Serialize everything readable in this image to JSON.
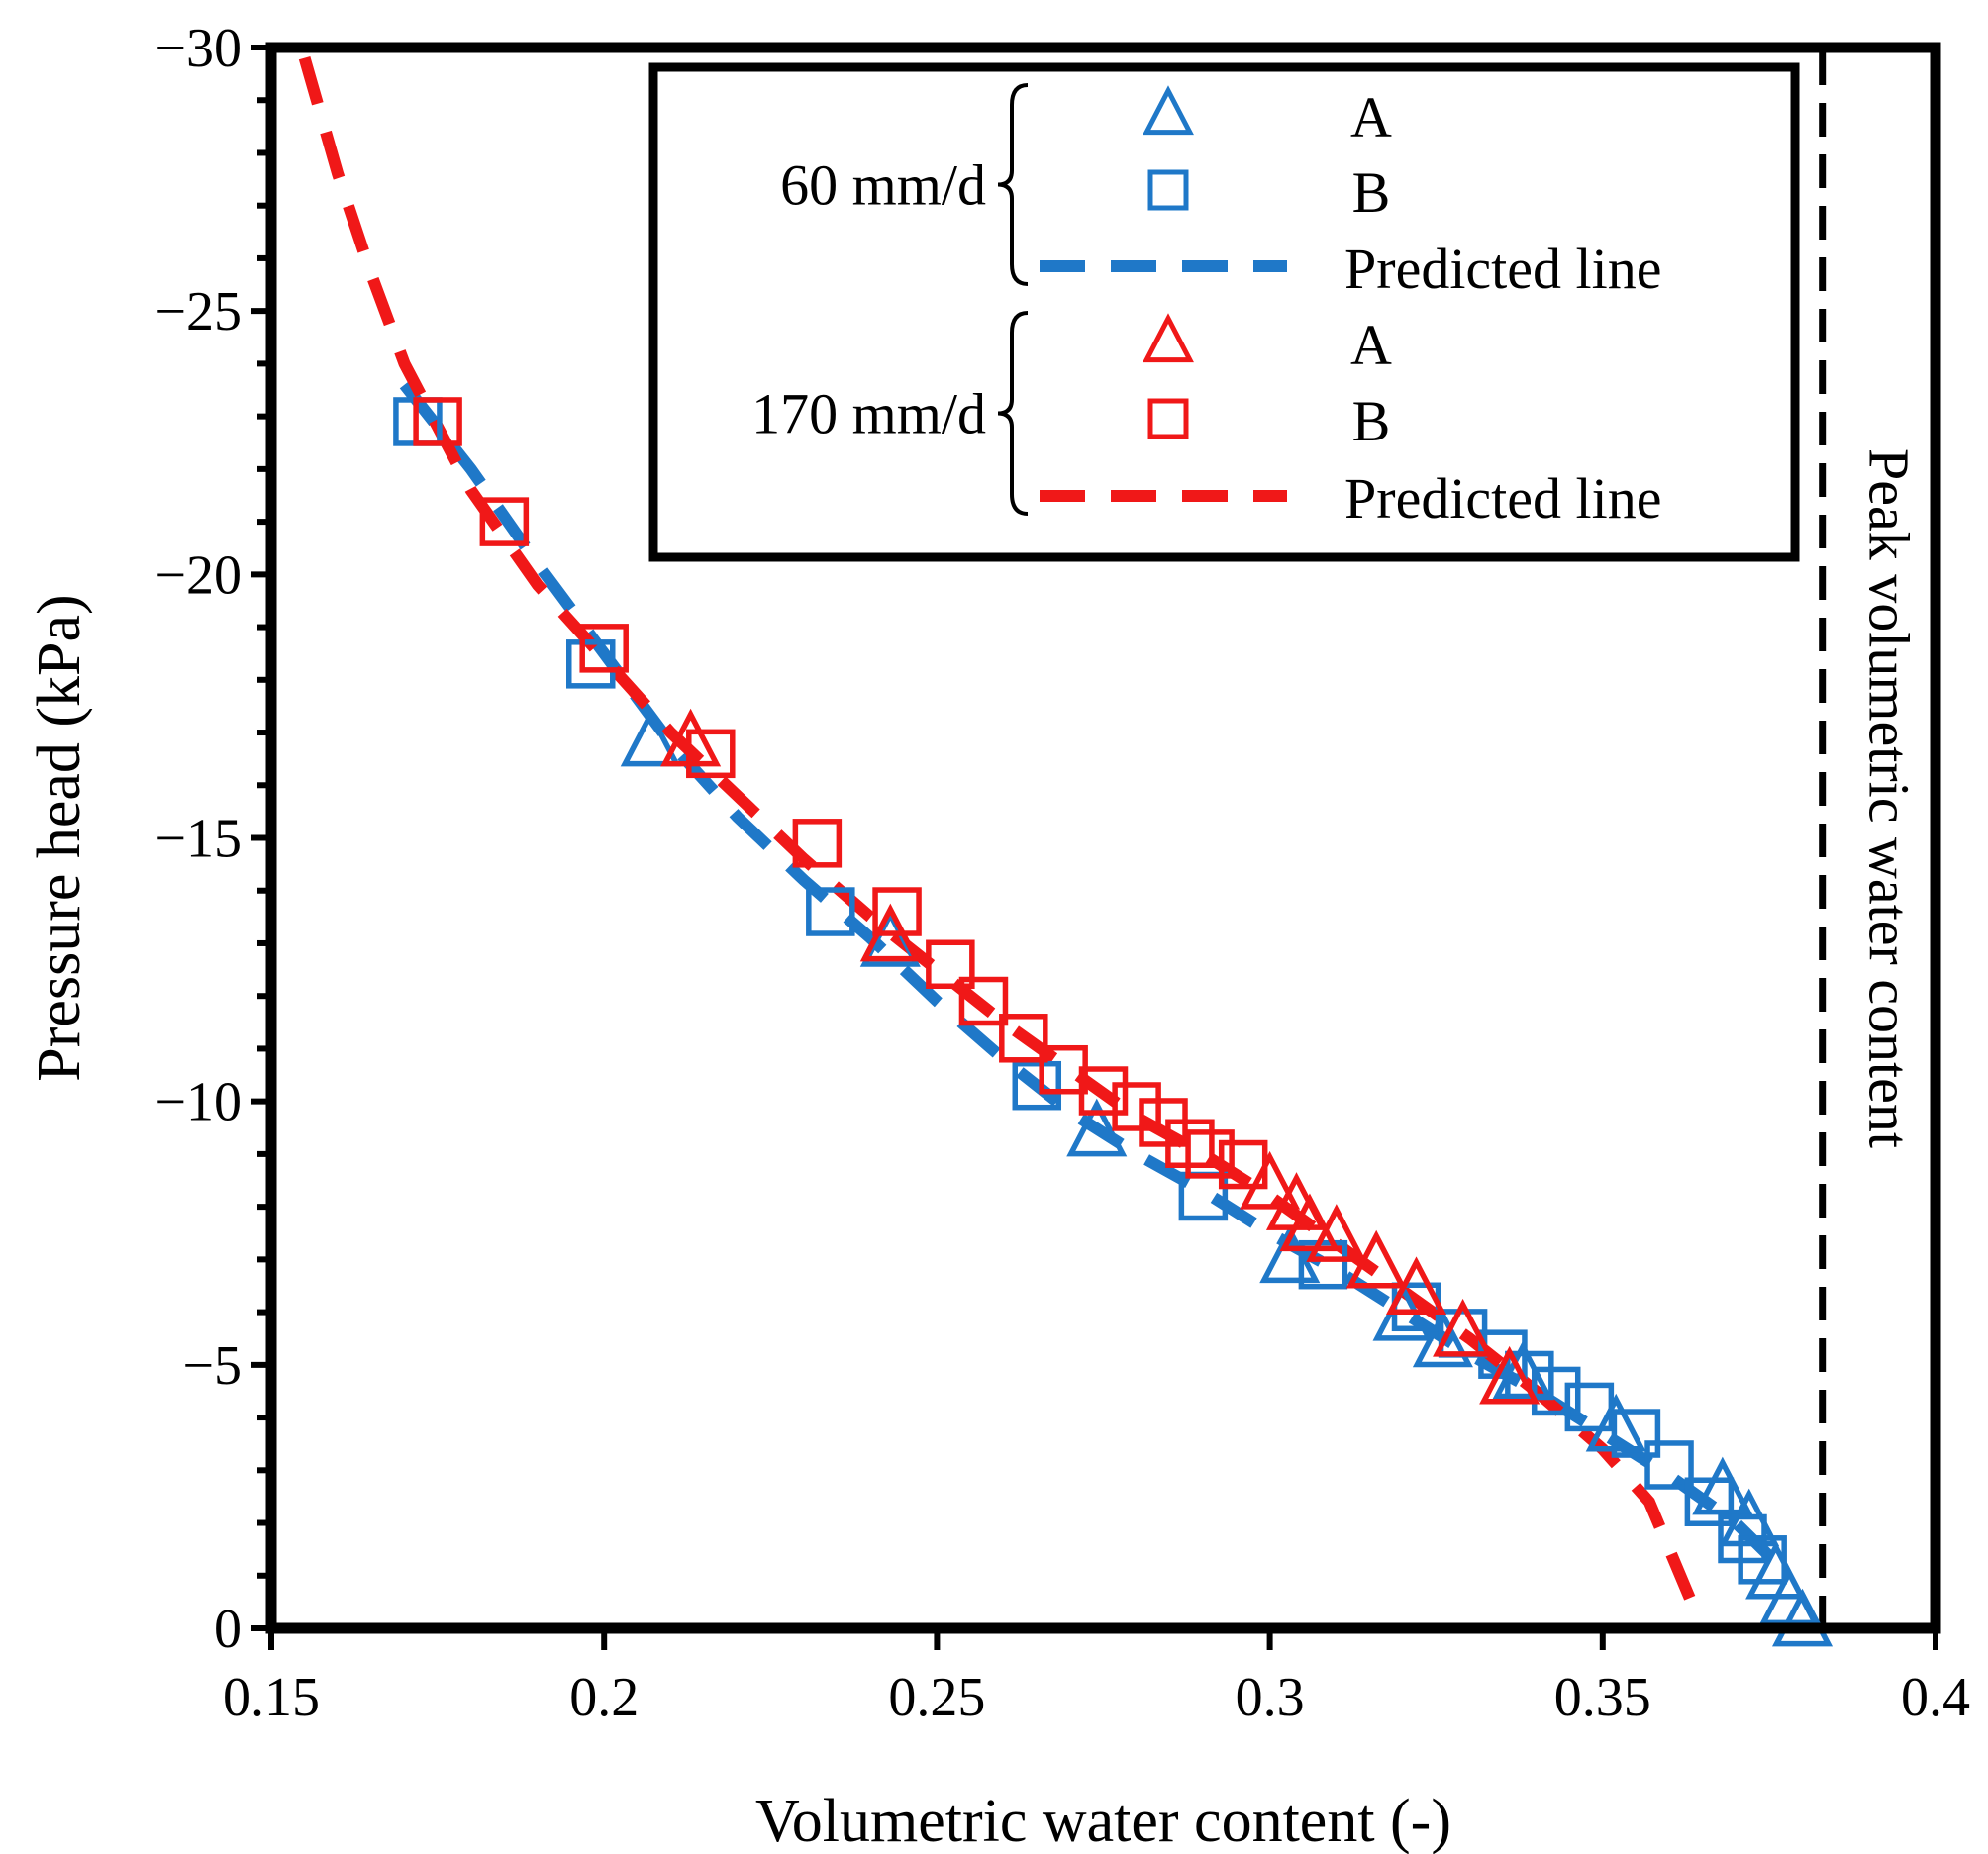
{
  "chart_data": {
    "type": "scatter",
    "title": "",
    "xlabel": "Volumetric water content (-)",
    "ylabel": "Pressure head (kPa)",
    "xlim": [
      0.15,
      0.4
    ],
    "ylim": [
      0,
      -30
    ],
    "xticks": [
      0.15,
      0.2,
      0.25,
      0.3,
      0.35,
      0.4
    ],
    "xtick_labels": [
      "0.15",
      "0.2",
      "0.25",
      "0.3",
      "0.35",
      "0.4"
    ],
    "yticks": [
      0,
      -5,
      -10,
      -15,
      -20,
      -25,
      -30
    ],
    "ytick_labels": [
      "0",
      "−5",
      "−10",
      "−15",
      "−20",
      "−25",
      "−30"
    ],
    "grid": false,
    "legend_position": "top-right",
    "colors": {
      "blue": "#1f78c8",
      "red": "#f01818",
      "black": "#000000"
    },
    "groups": [
      {
        "label": "60 mm/d",
        "entries": [
          "A",
          "B",
          "Predicted line"
        ]
      },
      {
        "label": "170 mm/d",
        "entries": [
          "A",
          "B",
          "Predicted line"
        ]
      }
    ],
    "series": [
      {
        "name": "A",
        "group": "60 mm/d",
        "marker": "triangle",
        "color": "#1f78c8",
        "points": [
          [
            0.207,
            -16.8
          ],
          [
            0.243,
            -13.0
          ],
          [
            0.274,
            -9.4
          ],
          [
            0.303,
            -7.0
          ],
          [
            0.32,
            -5.9
          ],
          [
            0.326,
            -5.4
          ],
          [
            0.338,
            -4.8
          ],
          [
            0.352,
            -3.8
          ],
          [
            0.368,
            -2.6
          ],
          [
            0.372,
            -2.0
          ],
          [
            0.376,
            -1.0
          ],
          [
            0.378,
            -0.5
          ],
          [
            0.38,
            -0.1
          ]
        ]
      },
      {
        "name": "B",
        "group": "60 mm/d",
        "marker": "square",
        "color": "#1f78c8",
        "points": [
          [
            0.172,
            -22.9
          ],
          [
            0.198,
            -18.3
          ],
          [
            0.234,
            -13.6
          ],
          [
            0.265,
            -10.3
          ],
          [
            0.29,
            -8.2
          ],
          [
            0.308,
            -6.9
          ],
          [
            0.322,
            -6.1
          ],
          [
            0.329,
            -5.6
          ],
          [
            0.335,
            -5.2
          ],
          [
            0.339,
            -4.8
          ],
          [
            0.343,
            -4.5
          ],
          [
            0.348,
            -4.2
          ],
          [
            0.355,
            -3.7
          ],
          [
            0.36,
            -3.1
          ],
          [
            0.366,
            -2.4
          ],
          [
            0.371,
            -1.7
          ],
          [
            0.374,
            -1.3
          ]
        ]
      },
      {
        "name": "Predicted line",
        "group": "60 mm/d",
        "style": "dashed-line",
        "color": "#1f78c8",
        "points": [
          [
            0.17,
            -23.6
          ],
          [
            0.18,
            -22.0
          ],
          [
            0.19,
            -20.2
          ],
          [
            0.2,
            -18.5
          ],
          [
            0.21,
            -16.8
          ],
          [
            0.22,
            -15.4
          ],
          [
            0.23,
            -14.2
          ],
          [
            0.24,
            -13.1
          ],
          [
            0.25,
            -11.9
          ],
          [
            0.26,
            -10.8
          ],
          [
            0.27,
            -9.8
          ],
          [
            0.28,
            -9.0
          ],
          [
            0.29,
            -8.3
          ],
          [
            0.3,
            -7.5
          ],
          [
            0.31,
            -6.8
          ],
          [
            0.32,
            -6.0
          ],
          [
            0.33,
            -5.2
          ],
          [
            0.34,
            -4.5
          ],
          [
            0.35,
            -3.7
          ],
          [
            0.36,
            -2.9
          ],
          [
            0.37,
            -2.0
          ],
          [
            0.378,
            -1.0
          ]
        ]
      },
      {
        "name": "A",
        "group": "170 mm/d",
        "marker": "triangle",
        "color": "#f01818",
        "points": [
          [
            0.213,
            -16.8
          ],
          [
            0.243,
            -13.1
          ],
          [
            0.3,
            -8.4
          ],
          [
            0.304,
            -8.0
          ],
          [
            0.306,
            -7.6
          ],
          [
            0.31,
            -7.4
          ],
          [
            0.316,
            -6.9
          ],
          [
            0.322,
            -6.4
          ],
          [
            0.329,
            -5.6
          ],
          [
            0.336,
            -4.7
          ]
        ]
      },
      {
        "name": "B",
        "group": "170 mm/d",
        "marker": "square",
        "color": "#f01818",
        "points": [
          [
            0.175,
            -22.9
          ],
          [
            0.185,
            -21.0
          ],
          [
            0.2,
            -18.6
          ],
          [
            0.216,
            -16.6
          ],
          [
            0.232,
            -14.9
          ],
          [
            0.244,
            -13.6
          ],
          [
            0.252,
            -12.6
          ],
          [
            0.257,
            -11.9
          ],
          [
            0.263,
            -11.2
          ],
          [
            0.269,
            -10.6
          ],
          [
            0.275,
            -10.2
          ],
          [
            0.28,
            -9.9
          ],
          [
            0.284,
            -9.6
          ],
          [
            0.288,
            -9.2
          ],
          [
            0.291,
            -9.0
          ],
          [
            0.296,
            -8.8
          ]
        ]
      },
      {
        "name": "Predicted line",
        "group": "170 mm/d",
        "style": "dashed-line",
        "color": "#f01818",
        "points": [
          [
            0.155,
            -29.8
          ],
          [
            0.16,
            -27.6
          ],
          [
            0.165,
            -25.7
          ],
          [
            0.17,
            -24.0
          ],
          [
            0.175,
            -22.8
          ],
          [
            0.18,
            -21.6
          ],
          [
            0.19,
            -19.8
          ],
          [
            0.2,
            -18.4
          ],
          [
            0.21,
            -17.0
          ],
          [
            0.22,
            -15.8
          ],
          [
            0.23,
            -14.6
          ],
          [
            0.24,
            -13.5
          ],
          [
            0.25,
            -12.5
          ],
          [
            0.26,
            -11.5
          ],
          [
            0.27,
            -10.6
          ],
          [
            0.28,
            -9.7
          ],
          [
            0.29,
            -9.0
          ],
          [
            0.3,
            -8.2
          ],
          [
            0.31,
            -7.3
          ],
          [
            0.32,
            -6.4
          ],
          [
            0.33,
            -5.5
          ],
          [
            0.34,
            -4.5
          ],
          [
            0.35,
            -3.4
          ],
          [
            0.357,
            -2.4
          ],
          [
            0.364,
            -0.3
          ]
        ]
      }
    ],
    "reference_line": {
      "x": 0.383,
      "label": "Peak volumetric water content",
      "style": "dashed",
      "color": "#000000"
    }
  }
}
